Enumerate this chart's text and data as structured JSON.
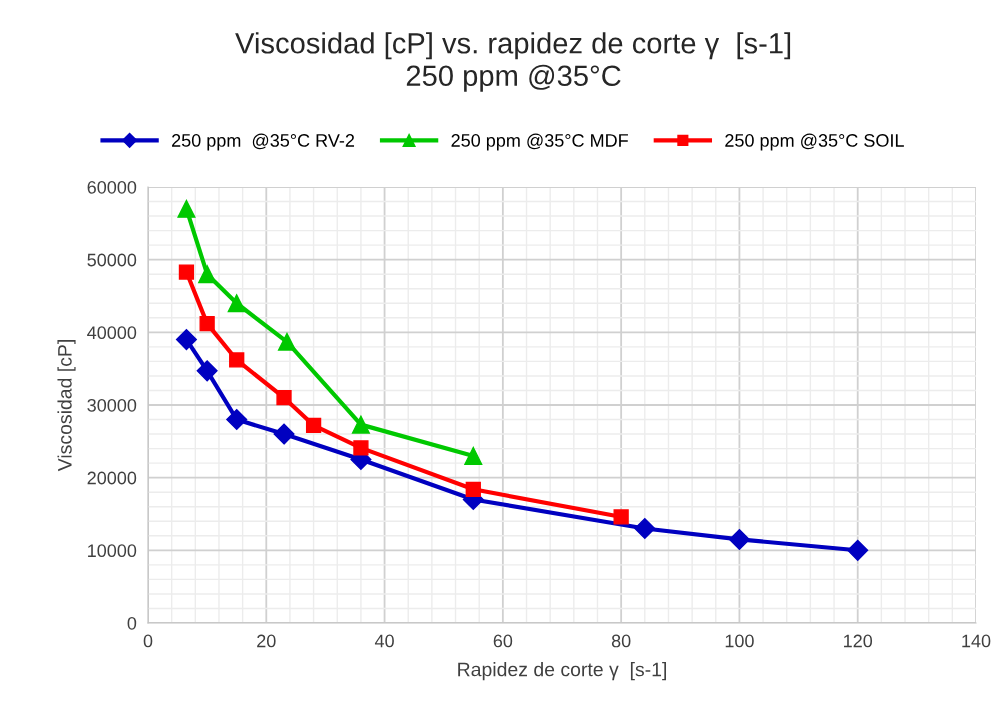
{
  "chart_data": {
    "type": "line",
    "title": "Viscosidad [cP] vs. rapidez de corte γ  [s-1]\n250 ppm @35°C",
    "xlabel": "Rapidez de corte γ  [s-1]",
    "ylabel": "Viscosidad [cP]",
    "series": [
      {
        "name": "250 ppm  @35°C RV-2",
        "color": "#0000c0",
        "marker": "diamond",
        "x": [
          6.5,
          10,
          15,
          23,
          36,
          55,
          84,
          100,
          120
        ],
        "values": [
          39000,
          34700,
          28000,
          26000,
          22500,
          17000,
          13000,
          11500,
          10000
        ]
      },
      {
        "name": "250 ppm @35°C MDF",
        "color": "#00c800",
        "marker": "triangle",
        "x": [
          6.5,
          10,
          15,
          23.5,
          36,
          55
        ],
        "values": [
          57000,
          48000,
          44000,
          38700,
          27300,
          23000
        ]
      },
      {
        "name": "250 ppm @35°C SOIL",
        "color": "#ff0000",
        "marker": "square",
        "x": [
          6.5,
          10,
          15,
          23,
          28,
          36,
          55,
          80
        ],
        "values": [
          48300,
          41200,
          36200,
          31000,
          27200,
          24100,
          18400,
          14600
        ]
      }
    ],
    "xlim": [
      0,
      140
    ],
    "xticks": [
      0,
      20,
      40,
      60,
      80,
      100,
      120,
      140
    ],
    "ylim": [
      0,
      60000
    ],
    "yticks": [
      0,
      10000,
      20000,
      30000,
      40000,
      50000,
      60000
    ],
    "grid": true,
    "legend": "top",
    "line_style": "solid"
  }
}
